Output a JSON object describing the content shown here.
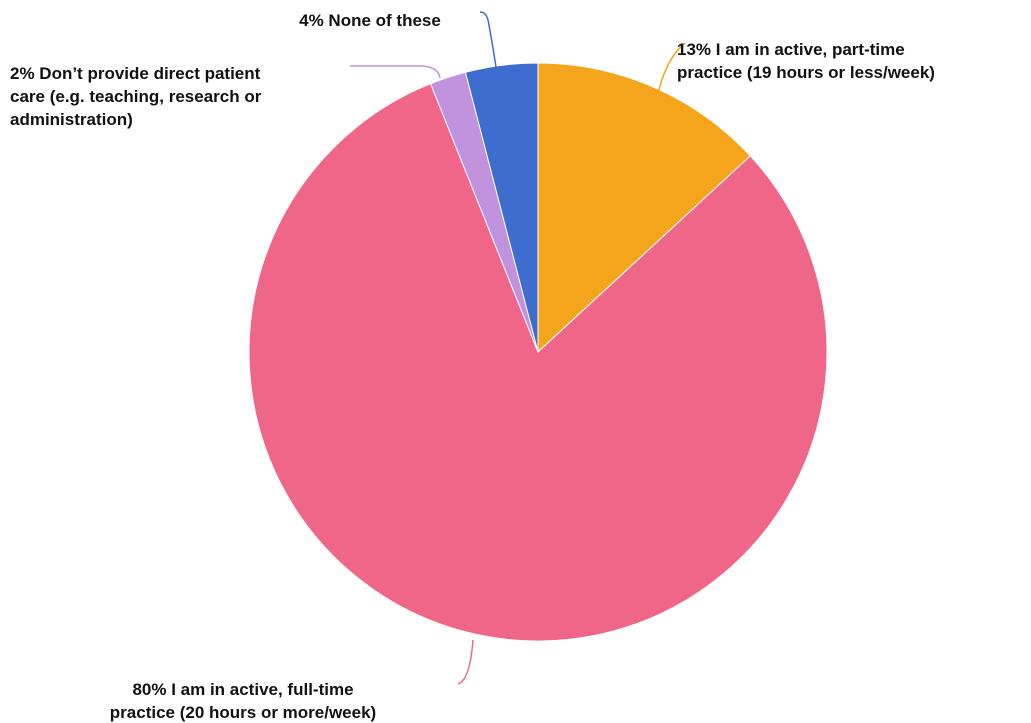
{
  "chart_data": {
    "type": "pie",
    "start_angle_deg": 0,
    "direction": "clockwise",
    "slices": [
      {
        "value": 13,
        "color": "#F5A51C",
        "label_lines": [
          "13% I am in active, part-time",
          "practice (19 hours or less/week)"
        ]
      },
      {
        "value": 80,
        "color": "#F06688",
        "label_lines": [
          "80% I am in active, full-time",
          "practice (20 hours or more/week)"
        ]
      },
      {
        "value": 2,
        "color": "#C192DE",
        "label_lines": [
          "2% Don’t provide direct patient",
          "care (e.g. teaching, research or",
          "administration)"
        ]
      },
      {
        "value": 4,
        "color": "#3D6ECF",
        "label_lines": [
          "4% None of these"
        ]
      }
    ]
  }
}
